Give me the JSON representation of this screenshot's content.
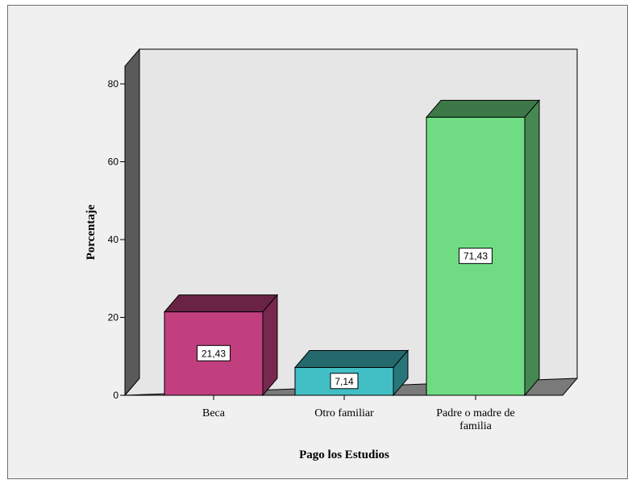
{
  "chart_data": {
    "type": "bar",
    "categories": [
      "Beca",
      "Otro familiar",
      "Padre o madre de familia"
    ],
    "category_lines": [
      [
        "Beca"
      ],
      [
        "Otro familiar"
      ],
      [
        "Padre o madre de",
        "familia"
      ]
    ],
    "values": [
      21.43,
      7.14,
      71.43
    ],
    "data_labels": [
      "21,43",
      "7,14",
      "71,43"
    ],
    "xlabel": "Pago los Estudios",
    "ylabel": "Porcentaje",
    "ylim": [
      0,
      80
    ],
    "yticks": [
      "0",
      "20",
      "40",
      "60",
      "80"
    ],
    "colors": [
      "#c13f7e",
      "#41bfc5",
      "#6fdc83"
    ],
    "style": "3d",
    "grid": false
  }
}
